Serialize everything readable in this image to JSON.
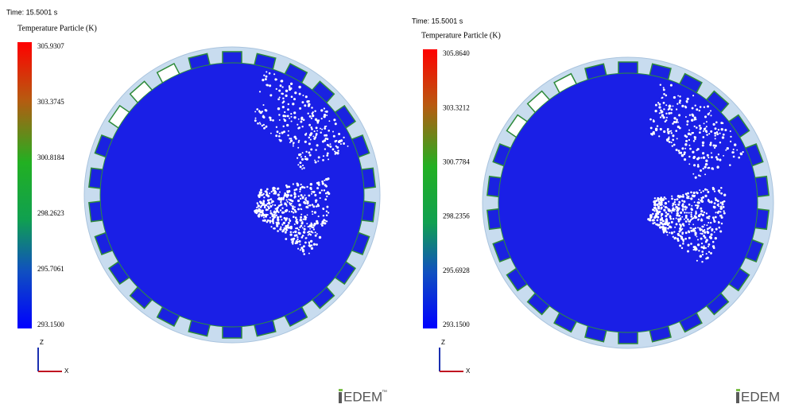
{
  "panels": [
    {
      "time": "Time: 15.5001 s",
      "legend_title": "Temperature Particle (K)",
      "legend_labels": [
        "305.9307",
        "303.3745",
        "300.8184",
        "298.2623",
        "295.7061",
        "293.1500"
      ],
      "axis_labels": {
        "z": "Z",
        "x": "X"
      },
      "logo": "EDEM",
      "trademark": "™"
    },
    {
      "time": "Time: 15.5001 s",
      "legend_title": "Temperature Particle (K)",
      "legend_labels": [
        "305.8640",
        "303.3212",
        "300.7784",
        "298.2356",
        "295.6928",
        "293.1500"
      ],
      "axis_labels": {
        "z": "Z",
        "x": "X"
      },
      "logo": "EDEM"
    }
  ]
}
